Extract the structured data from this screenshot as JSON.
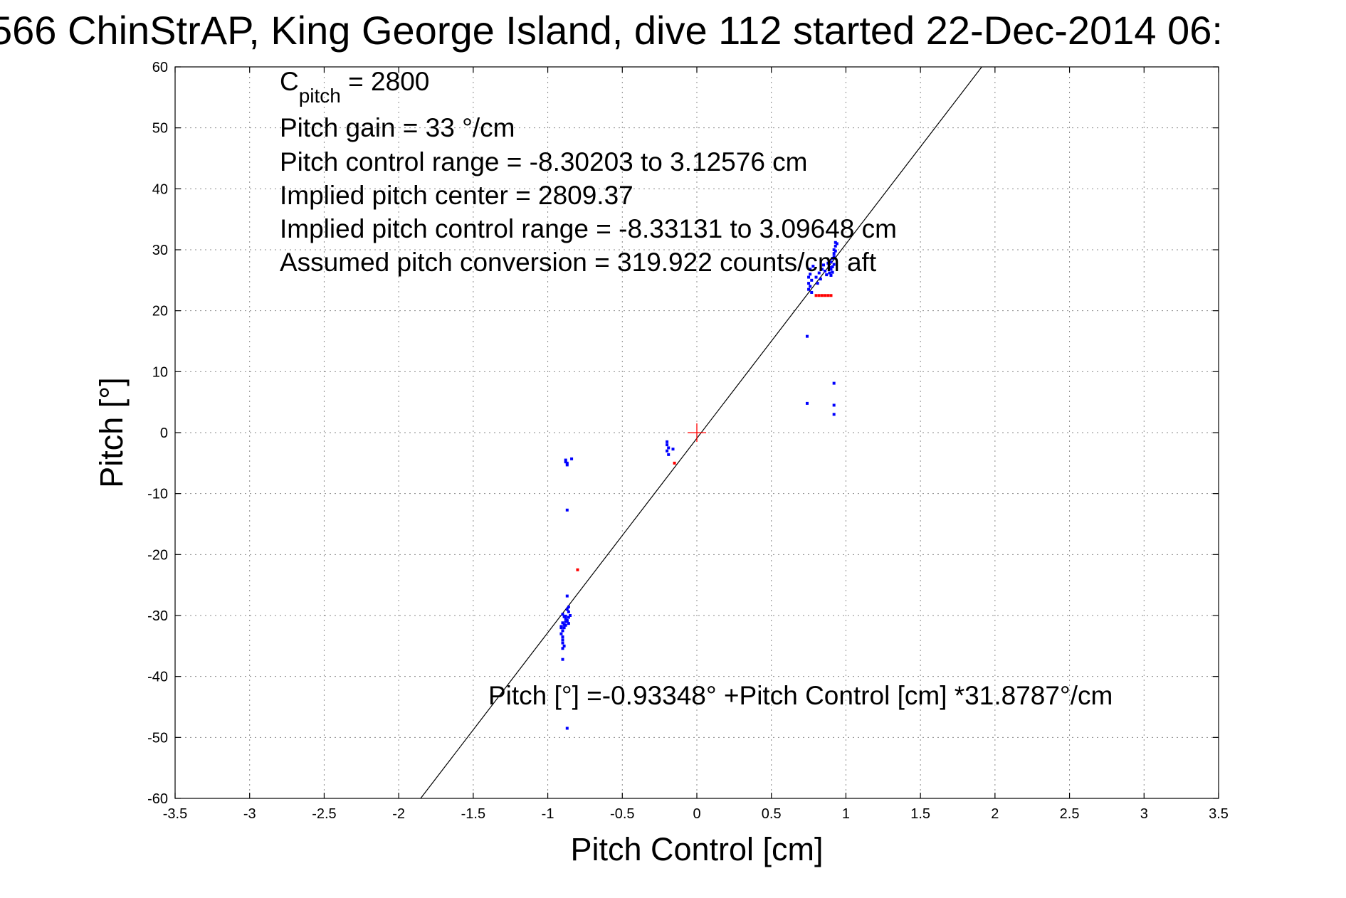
{
  "chart_data": {
    "type": "scatter",
    "title": "566 ChinStrAP, King George Island, dive 112 started 22-Dec-2014 06:",
    "xlabel": "Pitch Control [cm]",
    "ylabel": "Pitch [°]",
    "xlim": [
      -3.5,
      3.5
    ],
    "ylim": [
      -60,
      60
    ],
    "xticks": [
      -3.5,
      -3,
      -2.5,
      -2,
      -1.5,
      -1,
      -0.5,
      0,
      0.5,
      1,
      1.5,
      2,
      2.5,
      3,
      3.5
    ],
    "yticks": [
      -60,
      -50,
      -40,
      -30,
      -20,
      -10,
      0,
      10,
      20,
      30,
      40,
      50,
      60
    ],
    "grid": true,
    "annotations": {
      "cpitch_main": "C",
      "cpitch_sub": "pitch",
      "cpitch_value": " = 2800",
      "gain": "Pitch gain = 33 °/cm",
      "range": "Pitch control range = -8.30203 to 3.12576 cm",
      "center": "Implied pitch center = 2809.37",
      "implied_range": "Implied pitch control range = -8.33131 to 3.09648 cm",
      "conversion": "Assumed pitch conversion = 319.922 counts/cm aft"
    },
    "equation": "Pitch [°] =-0.93348° +Pitch Control [cm] *31.8787°/cm",
    "fit_line": {
      "intercept": -0.93348,
      "slope": 31.8787,
      "color": "#000000"
    },
    "center_marker": {
      "x": 0,
      "y": 0,
      "color": "#ff0000"
    },
    "series": [
      {
        "color": "#0000ff",
        "points": [
          [
            -0.88,
            -4.5
          ],
          [
            -0.87,
            -5.0
          ],
          [
            -0.87,
            -5.3
          ],
          [
            -0.88,
            -4.8
          ],
          [
            -0.84,
            -4.3
          ],
          [
            -0.87,
            -12.7
          ],
          [
            -0.87,
            -26.8
          ],
          [
            -0.87,
            -29.0
          ],
          [
            -0.86,
            -28.6
          ],
          [
            -0.9,
            -29.8
          ],
          [
            -0.89,
            -30.2
          ],
          [
            -0.88,
            -30.5
          ],
          [
            -0.87,
            -30.8
          ],
          [
            -0.86,
            -30.3
          ],
          [
            -0.85,
            -30.0
          ],
          [
            -0.86,
            -29.4
          ],
          [
            -0.88,
            -31.0
          ],
          [
            -0.89,
            -31.5
          ],
          [
            -0.9,
            -31.2
          ],
          [
            -0.91,
            -32.0
          ],
          [
            -0.9,
            -32.5
          ],
          [
            -0.91,
            -33.0
          ],
          [
            -0.9,
            -33.5
          ],
          [
            -0.89,
            -32.0
          ],
          [
            -0.88,
            -31.6
          ],
          [
            -0.87,
            -30.9
          ],
          [
            -0.86,
            -31.3
          ],
          [
            -0.9,
            -34.0
          ],
          [
            -0.9,
            -34.5
          ],
          [
            -0.89,
            -35.0
          ],
          [
            -0.9,
            -35.4
          ],
          [
            -0.91,
            -31.8
          ],
          [
            -0.88,
            -30.1
          ],
          [
            -0.9,
            -37.2
          ],
          [
            -0.87,
            -48.5
          ],
          [
            -0.2,
            -1.5
          ],
          [
            -0.2,
            -2.0
          ],
          [
            -0.19,
            -2.5
          ],
          [
            -0.2,
            -3.0
          ],
          [
            -0.19,
            -3.6
          ],
          [
            -0.16,
            -2.7
          ],
          [
            0.74,
            15.8
          ],
          [
            0.74,
            4.8
          ],
          [
            0.92,
            8.1
          ],
          [
            0.92,
            4.5
          ],
          [
            0.92,
            3.0
          ],
          [
            0.75,
            23.5
          ],
          [
            0.75,
            24.5
          ],
          [
            0.75,
            25.5
          ],
          [
            0.76,
            26.0
          ],
          [
            0.76,
            26.8
          ],
          [
            0.77,
            25.0
          ],
          [
            0.76,
            24.0
          ],
          [
            0.77,
            23.0
          ],
          [
            0.78,
            27.3
          ],
          [
            0.8,
            25.5
          ],
          [
            0.81,
            24.5
          ],
          [
            0.82,
            26.2
          ],
          [
            0.83,
            25.2
          ],
          [
            0.84,
            26.8
          ],
          [
            0.85,
            27.5
          ],
          [
            0.86,
            26.5
          ],
          [
            0.87,
            25.9
          ],
          [
            0.88,
            27.8
          ],
          [
            0.89,
            26.2
          ],
          [
            0.9,
            26.8
          ],
          [
            0.9,
            28.0
          ],
          [
            0.91,
            27.2
          ],
          [
            0.91,
            28.6
          ],
          [
            0.92,
            29.4
          ],
          [
            0.92,
            30.0
          ],
          [
            0.93,
            30.6
          ],
          [
            0.93,
            31.2
          ],
          [
            0.92,
            28.9
          ],
          [
            0.91,
            26.3
          ],
          [
            0.9,
            25.8
          ],
          [
            0.89,
            27.1
          ],
          [
            0.92,
            27.6
          ],
          [
            0.93,
            29.8
          ],
          [
            0.94,
            31.0
          ]
        ]
      },
      {
        "color": "#ff0000",
        "points": [
          [
            -0.8,
            -22.5
          ],
          [
            -0.15,
            -5.0
          ],
          [
            0.8,
            22.5
          ],
          [
            0.82,
            22.5
          ],
          [
            0.84,
            22.5
          ],
          [
            0.86,
            22.5
          ],
          [
            0.88,
            22.5
          ],
          [
            0.9,
            22.5
          ]
        ]
      }
    ]
  }
}
